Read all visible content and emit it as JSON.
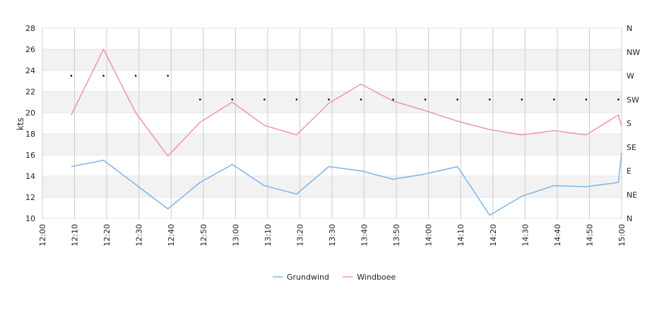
{
  "chart_data": {
    "type": "line",
    "ylabel": "kts",
    "ylim": [
      10,
      28
    ],
    "yticks": [
      10,
      12,
      14,
      16,
      18,
      20,
      22,
      24,
      26,
      28
    ],
    "y2_ticks": [
      "N",
      "NE",
      "E",
      "SE",
      "S",
      "SW",
      "W",
      "NW",
      "N"
    ],
    "x_ticks": [
      "12:00",
      "12:10",
      "12:20",
      "12:30",
      "12:40",
      "12:50",
      "13:00",
      "13:10",
      "13:20",
      "13:30",
      "13:40",
      "13:50",
      "14:00",
      "14:10",
      "14:20",
      "14:30",
      "14:40",
      "14:50",
      "15:00"
    ],
    "x": [
      "12:09",
      "12:19",
      "12:29",
      "12:39",
      "12:49",
      "12:59",
      "13:09",
      "13:19",
      "13:29",
      "13:39",
      "13:49",
      "13:59",
      "14:09",
      "14:19",
      "14:29",
      "14:39",
      "14:49",
      "14:59"
    ],
    "grid": true,
    "banded_background": true,
    "legend_position": "bottom-center",
    "colors": {
      "grundwind": "#7cb5ec",
      "windboee": "#f28fbf",
      "direction": "#000000"
    },
    "series": [
      {
        "name": "Grundwind",
        "color": "#7cb5ec",
        "values": [
          14.9,
          15.5,
          13.2,
          10.9,
          13.4,
          15.1,
          13.1,
          12.3,
          14.9,
          14.5,
          13.7,
          14.2,
          14.9,
          10.3,
          12.1,
          13.1,
          13.0,
          13.4
        ],
        "last_x_extra": "15:00",
        "last_value_extra": 16.2
      },
      {
        "name": "Windboee",
        "color": "#f28fbf",
        "values": [
          19.8,
          26.0,
          20.0,
          15.9,
          19.1,
          21.0,
          18.8,
          17.9,
          20.9,
          22.7,
          21.1,
          20.2,
          19.2,
          18.4,
          17.9,
          18.3,
          17.9,
          19.8
        ],
        "last_x_extra": "15:00",
        "last_value_extra": 18.7
      },
      {
        "name": "direction",
        "unit": "compass",
        "values": [
          "W",
          "W",
          "W",
          "W",
          "SW",
          "SW",
          "SW",
          "SW",
          "SW",
          "SW",
          "SW",
          "SW",
          "SW",
          "SW",
          "SW",
          "SW",
          "SW",
          "SW"
        ]
      }
    ]
  }
}
